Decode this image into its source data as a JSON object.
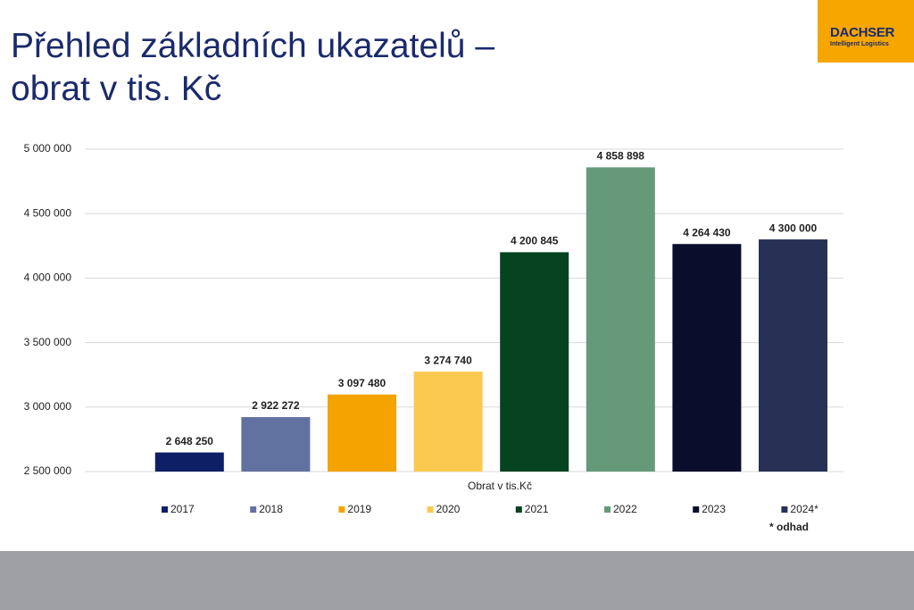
{
  "header": {
    "title_lines": [
      "Přehled základních ukazatelů –",
      "obrat v tis. Kč"
    ],
    "logo": {
      "name": "DACHSER",
      "tagline": "Intelligent Logistics"
    }
  },
  "chart_data": {
    "type": "bar",
    "x_label": "Obrat v tis.Kč",
    "note": "* odhad",
    "ylim": [
      2500000,
      5000000
    ],
    "yticks": [
      {
        "value": 2500000,
        "label": "2 500 000"
      },
      {
        "value": 3000000,
        "label": "3 000 000"
      },
      {
        "value": 3500000,
        "label": "3 500 000"
      },
      {
        "value": 4000000,
        "label": "4 000 000"
      },
      {
        "value": 4500000,
        "label": "4 500 000"
      },
      {
        "value": 5000000,
        "label": "5 000 000"
      }
    ],
    "grid": true,
    "legend": "bottom",
    "series": [
      {
        "name": "2017",
        "color": "#0e1f66",
        "values": [
          2648250
        ],
        "value_labels": [
          "2 648 250"
        ]
      },
      {
        "name": "2018",
        "color": "#6272a0",
        "values": [
          2922272
        ],
        "value_labels": [
          "2 922 272"
        ]
      },
      {
        "name": "2019",
        "color": "#f5a300",
        "values": [
          3097480
        ],
        "value_labels": [
          "3 097 480"
        ]
      },
      {
        "name": "2020",
        "color": "#fbc94f",
        "values": [
          3274740
        ],
        "value_labels": [
          "3 274 740"
        ]
      },
      {
        "name": "2021",
        "color": "#06431f",
        "values": [
          4200845
        ],
        "value_labels": [
          "4 200 845"
        ]
      },
      {
        "name": "2022",
        "color": "#65997a",
        "values": [
          4858898
        ],
        "value_labels": [
          "4 858 898"
        ]
      },
      {
        "name": "2023",
        "color": "#0a0d2c",
        "values": [
          4264430
        ],
        "value_labels": [
          "4 264 430"
        ]
      },
      {
        "name": "2024*",
        "color": "#263155",
        "values": [
          4300000
        ],
        "value_labels": [
          "4 300 000"
        ]
      }
    ]
  }
}
